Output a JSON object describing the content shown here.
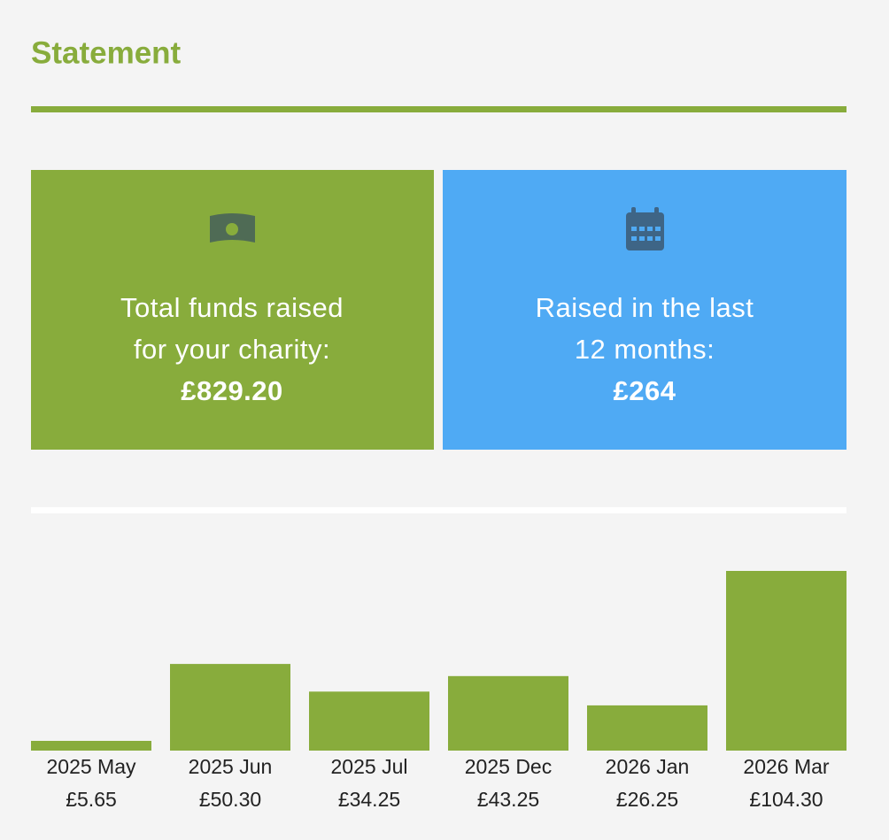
{
  "header": {
    "title": "Statement"
  },
  "cards": [
    {
      "label_lines": [
        "Total funds raised",
        "for your charity:"
      ],
      "amount": "£829.20"
    },
    {
      "label_lines": [
        "Raised in the last",
        "12 months:"
      ],
      "amount": "£264"
    }
  ],
  "chart_data": {
    "type": "bar",
    "categories": [
      "2025 May",
      "2025 Jun",
      "2025 Jul",
      "2025 Dec",
      "2026 Jan",
      "2026 Mar"
    ],
    "values": [
      5.65,
      50.3,
      34.25,
      43.25,
      26.25,
      104.3
    ],
    "value_labels": [
      "£5.65",
      "£50.30",
      "£34.25",
      "£43.25",
      "£26.25",
      "£104.30"
    ],
    "color": "#88ac3c"
  }
}
